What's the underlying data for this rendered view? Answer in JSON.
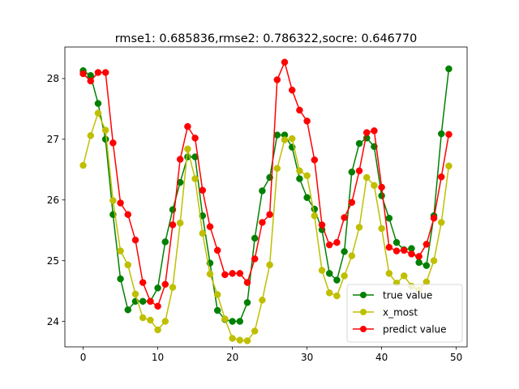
{
  "chart_data": {
    "type": "line",
    "title": "rmse1: 0.685836,rmse2: 0.786322,socre: 0.646770",
    "xlabel": "",
    "ylabel": "",
    "xlim": [
      -2.45,
      51.45
    ],
    "ylim": [
      23.58,
      28.52
    ],
    "xticks": [
      0,
      10,
      20,
      30,
      40,
      50
    ],
    "yticks": [
      24,
      25,
      26,
      27,
      28
    ],
    "legend_position": "lower-right",
    "x": [
      0,
      1,
      2,
      3,
      4,
      5,
      6,
      7,
      8,
      9,
      10,
      11,
      12,
      13,
      14,
      15,
      16,
      17,
      18,
      19,
      20,
      21,
      22,
      23,
      24,
      25,
      26,
      27,
      28,
      29,
      30,
      31,
      32,
      33,
      34,
      35,
      36,
      37,
      38,
      39,
      40,
      41,
      42,
      43,
      44,
      45,
      46,
      47,
      48,
      49
    ],
    "series": [
      {
        "name": "true value",
        "color": "#008000",
        "values": [
          28.13,
          28.05,
          27.59,
          27.0,
          25.76,
          24.7,
          24.19,
          24.33,
          24.33,
          24.33,
          24.55,
          25.31,
          25.84,
          26.29,
          26.71,
          26.71,
          25.74,
          24.96,
          24.18,
          24.03,
          24.0,
          24.0,
          24.31,
          25.37,
          26.15,
          26.37,
          27.07,
          27.07,
          26.87,
          26.35,
          26.04,
          25.85,
          25.51,
          24.79,
          24.68,
          25.15,
          26.46,
          26.93,
          27.02,
          26.88,
          26.07,
          25.7,
          25.3,
          25.18,
          25.2,
          24.97,
          24.92,
          25.74,
          27.09,
          28.16
        ]
      },
      {
        "name": "x_most",
        "color": "#bfbf00",
        "values": [
          26.57,
          27.06,
          27.43,
          27.15,
          25.99,
          25.16,
          24.93,
          24.45,
          24.06,
          24.02,
          23.86,
          24.0,
          24.56,
          25.62,
          26.84,
          26.35,
          25.45,
          24.78,
          24.44,
          24.04,
          23.72,
          23.69,
          23.68,
          23.84,
          24.35,
          24.93,
          26.52,
          26.99,
          27.01,
          26.48,
          26.4,
          25.74,
          24.84,
          24.47,
          24.42,
          24.75,
          25.08,
          25.55,
          26.37,
          26.24,
          25.53,
          24.79,
          24.63,
          24.75,
          24.58,
          24.52,
          24.65,
          25.0,
          25.63,
          26.56
        ]
      },
      {
        "name": "predict value",
        "color": "#ff0000",
        "values": [
          28.08,
          27.96,
          28.1,
          28.1,
          26.94,
          25.95,
          25.76,
          25.34,
          24.64,
          24.33,
          24.25,
          24.61,
          25.59,
          26.67,
          27.21,
          27.02,
          26.16,
          25.56,
          25.17,
          24.77,
          24.79,
          24.79,
          24.64,
          25.03,
          25.63,
          25.76,
          27.98,
          28.27,
          27.81,
          27.48,
          27.3,
          26.66,
          25.59,
          25.26,
          25.3,
          25.71,
          25.96,
          26.48,
          27.11,
          27.14,
          26.21,
          25.22,
          25.16,
          25.17,
          25.11,
          25.07,
          25.27,
          25.7,
          26.38,
          27.08
        ]
      }
    ]
  }
}
